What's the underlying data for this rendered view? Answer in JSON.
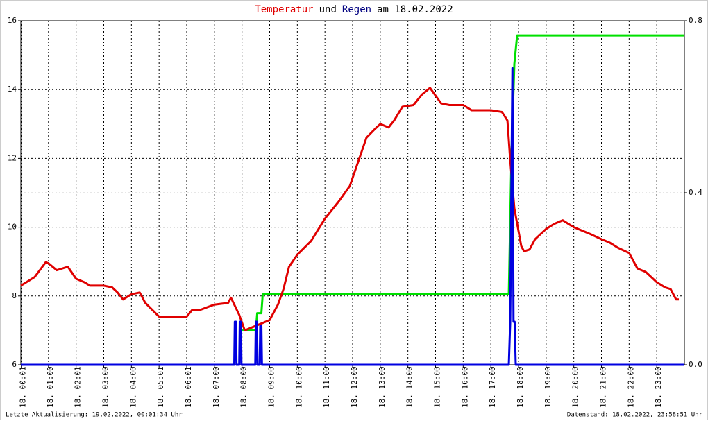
{
  "chart_data": {
    "type": "line",
    "title": [
      "Temperatur",
      "und",
      "Regen",
      "am 18.02.2022"
    ],
    "title_colors": [
      "#e00000",
      "#000000",
      "#000080",
      "#000000"
    ],
    "footer_left": "Letzte Aktualisierung: 19.02.2022, 00:01:34 Uhr",
    "footer_right": "Datenstand: 18.02.2022, 23:58:51 Uhr",
    "xlim": [
      0,
      24
    ],
    "xticks": [
      {
        "value": 0.0167,
        "label": "18. 00:01"
      },
      {
        "value": 1,
        "label": "18. 01:00"
      },
      {
        "value": 2,
        "label": "18. 02:01"
      },
      {
        "value": 3,
        "label": "18. 03:00"
      },
      {
        "value": 4,
        "label": "18. 04:00"
      },
      {
        "value": 5,
        "label": "18. 05:01"
      },
      {
        "value": 6,
        "label": "18. 06:01"
      },
      {
        "value": 7,
        "label": "18. 07:00"
      },
      {
        "value": 8,
        "label": "18. 08:00"
      },
      {
        "value": 9,
        "label": "18. 09:00"
      },
      {
        "value": 10,
        "label": "18. 10:00"
      },
      {
        "value": 11,
        "label": "18. 11:00"
      },
      {
        "value": 12,
        "label": "18. 12:00"
      },
      {
        "value": 13,
        "label": "18. 13:00"
      },
      {
        "value": 14,
        "label": "18. 14:00"
      },
      {
        "value": 15,
        "label": "18. 15:00"
      },
      {
        "value": 16,
        "label": "18. 16:00"
      },
      {
        "value": 17,
        "label": "18. 17:00"
      },
      {
        "value": 18,
        "label": "18. 18:00"
      },
      {
        "value": 19,
        "label": "18. 19:00"
      },
      {
        "value": 20,
        "label": "18. 20:00"
      },
      {
        "value": 21,
        "label": "18. 21:00"
      },
      {
        "value": 22,
        "label": "18. 22:00"
      },
      {
        "value": 23,
        "label": "18. 23:00"
      }
    ],
    "ylim": [
      6,
      16
    ],
    "yticks": [
      6,
      8,
      10,
      12,
      14,
      16
    ],
    "y2lim": [
      0,
      0.8
    ],
    "y2ticks": [
      {
        "value": 0,
        "label": "0.0"
      },
      {
        "value": 0.4,
        "label": "0.4"
      },
      {
        "value": 0.8,
        "label": "0.8"
      }
    ],
    "grid": true,
    "series": [
      {
        "color": "#00e000",
        "axis": "y2",
        "x": [
          8.0,
          8.5,
          8.55,
          8.7,
          8.75,
          17.65,
          17.75,
          17.85,
          17.95,
          24
        ],
        "values": [
          0.08,
          0.08,
          0.12,
          0.12,
          0.165,
          0.165,
          0.5,
          0.7,
          0.766,
          0.766
        ]
      },
      {
        "color": "#e00000",
        "x": [
          0,
          0.5,
          0.9,
          1.0,
          1.3,
          1.5,
          1.7,
          2.0,
          2.3,
          2.5,
          3.0,
          3.3,
          3.5,
          3.7,
          4.0,
          4.3,
          4.5,
          5.0,
          5.5,
          6.0,
          6.2,
          6.5,
          7.0,
          7.5,
          7.6,
          7.9,
          8.1,
          8.4,
          8.7,
          9.0,
          9.3,
          9.5,
          9.7,
          10.0,
          10.5,
          11.0,
          11.5,
          11.9,
          12.2,
          12.5,
          12.8,
          13.0,
          13.3,
          13.5,
          13.8,
          14.2,
          14.5,
          14.8,
          15.2,
          15.5,
          16.0,
          16.3,
          17.0,
          17.4,
          17.6,
          17.7,
          17.85,
          18.1,
          18.2,
          18.4,
          18.6,
          19.0,
          19.3,
          19.6,
          20.0,
          20.3,
          20.6,
          21.0,
          21.3,
          21.6,
          22.0,
          22.3,
          22.6,
          23.0,
          23.3,
          23.5,
          23.7,
          23.8
        ],
        "values": [
          8.3,
          8.55,
          8.98,
          8.95,
          8.75,
          8.8,
          8.85,
          8.5,
          8.4,
          8.3,
          8.3,
          8.25,
          8.1,
          7.9,
          8.05,
          8.1,
          7.8,
          7.4,
          7.4,
          7.4,
          7.6,
          7.6,
          7.75,
          7.8,
          7.95,
          7.45,
          7.0,
          7.1,
          7.2,
          7.3,
          7.75,
          8.2,
          8.85,
          9.2,
          9.6,
          10.25,
          10.75,
          11.2,
          11.9,
          12.6,
          12.85,
          13.0,
          12.9,
          13.1,
          13.5,
          13.55,
          13.85,
          14.05,
          13.6,
          13.55,
          13.55,
          13.4,
          13.4,
          13.35,
          13.1,
          11.95,
          10.55,
          9.45,
          9.3,
          9.35,
          9.65,
          9.95,
          10.1,
          10.2,
          10.0,
          9.9,
          9.8,
          9.65,
          9.55,
          9.4,
          9.25,
          8.8,
          8.7,
          8.4,
          8.25,
          8.2,
          7.9,
          7.9
        ]
      },
      {
        "color": "#0000e0",
        "axis": "y2",
        "x": [
          0,
          7.72,
          7.74,
          7.78,
          7.8,
          7.9,
          7.92,
          7.96,
          7.98,
          8.48,
          8.5,
          8.54,
          8.56,
          8.64,
          8.66,
          8.7,
          8.72,
          17.65,
          17.7,
          17.78,
          17.82,
          17.86,
          17.9,
          24
        ],
        "values": [
          0,
          0,
          0.1,
          0.1,
          0,
          0,
          0.1,
          0.1,
          0,
          0,
          0.1,
          0.1,
          0,
          0,
          0.09,
          0.09,
          0,
          0,
          0.1,
          0.69,
          0.1,
          0.1,
          0,
          0
        ]
      }
    ]
  }
}
